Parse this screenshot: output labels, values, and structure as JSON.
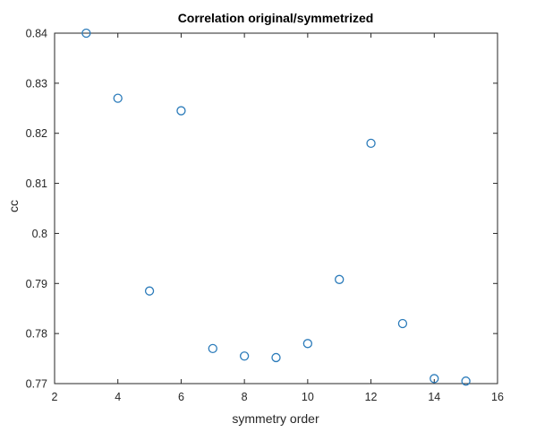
{
  "chart_data": {
    "type": "scatter",
    "title": "Correlation original/symmetrized",
    "xlabel": "symmetry order",
    "ylabel": "cc",
    "xlim": [
      2,
      16
    ],
    "ylim": [
      0.77,
      0.84
    ],
    "xticks": [
      2,
      4,
      6,
      8,
      10,
      12,
      14,
      16
    ],
    "xtick_labels": [
      "2",
      "4",
      "6",
      "8",
      "10",
      "12",
      "14",
      "16"
    ],
    "yticks": [
      0.77,
      0.78,
      0.79,
      0.8,
      0.81,
      0.82,
      0.83,
      0.84
    ],
    "ytick_labels": [
      "0.77",
      "0.78",
      "0.79",
      "0.8",
      "0.81",
      "0.82",
      "0.83",
      "0.84"
    ],
    "grid": false,
    "marker": "open-circle",
    "marker_color": "#2b7bba",
    "axis_color": "#262626",
    "x": [
      3,
      4,
      5,
      6,
      7,
      8,
      9,
      10,
      11,
      12,
      13,
      14,
      15
    ],
    "y": [
      0.84,
      0.827,
      0.7885,
      0.8245,
      0.777,
      0.7755,
      0.7752,
      0.778,
      0.7908,
      0.818,
      0.782,
      0.771,
      0.7705
    ]
  }
}
